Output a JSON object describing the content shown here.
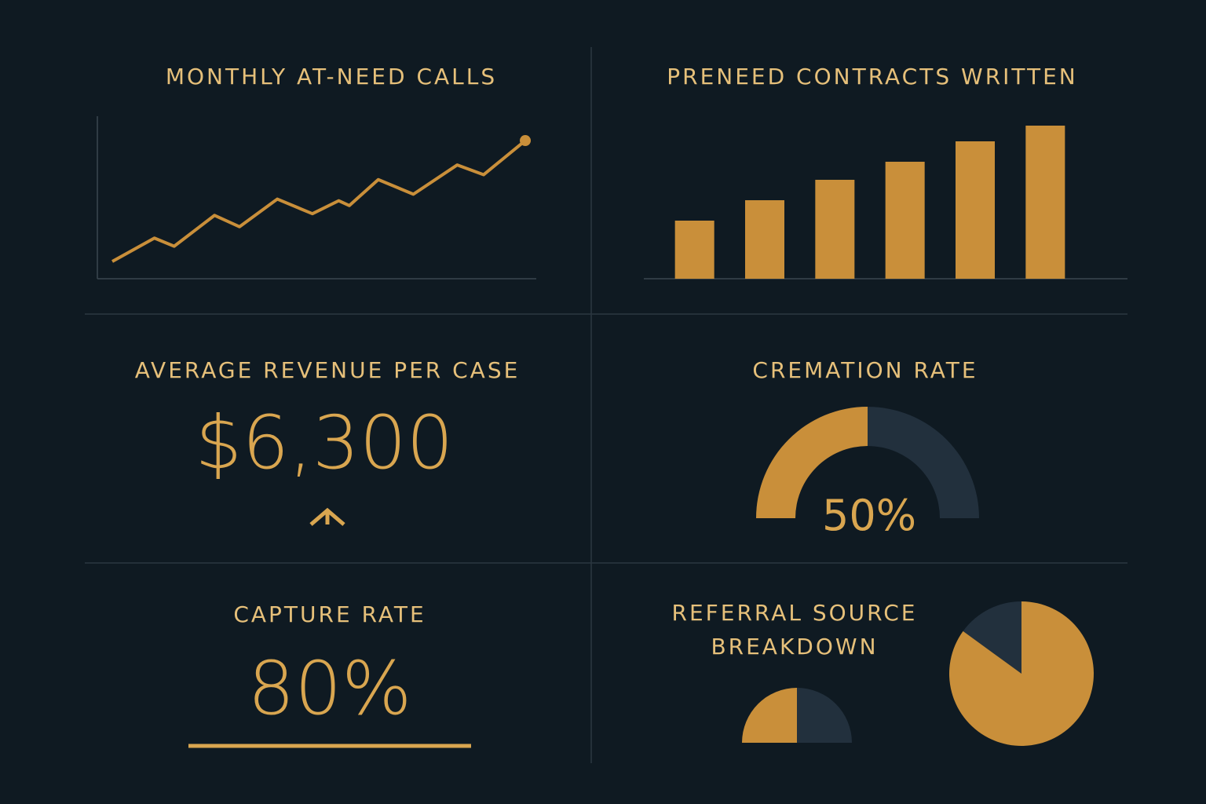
{
  "chart_data": [
    {
      "type": "line",
      "title": "MONTHLY AT-NEED CALLS",
      "color": "#c98f3a",
      "x": [
        3.4,
        13,
        17.5,
        26.7,
        32.4,
        41,
        49,
        55,
        57.4,
        64,
        72,
        82,
        88,
        97.5
      ],
      "values": [
        10.6,
        25,
        20,
        39,
        32,
        49,
        40,
        48,
        45,
        61,
        52,
        70,
        64,
        85
      ],
      "xlim": [
        0,
        100
      ],
      "ylim": [
        0,
        100
      ]
    },
    {
      "type": "bar",
      "title": "PRENEED CONTRACTS WRITTEN",
      "color": "#c98f3a",
      "values": [
        74,
        100,
        126,
        149,
        175,
        195
      ],
      "ylim": [
        0,
        200
      ]
    },
    {
      "type": "gauge",
      "title": "CREMATION RATE",
      "color": "#c98f3a",
      "track_color": "#22303d",
      "values": [
        50
      ],
      "value_labels": [
        "50%"
      ],
      "ylim": [
        0,
        100
      ]
    },
    {
      "type": "pie",
      "title": "REFERRAL SOURCE BREAKDOWN",
      "colors": [
        "#22303d",
        "#c98f3a"
      ],
      "values": [
        15,
        85
      ]
    },
    {
      "type": "half-pie",
      "colors": [
        "#c98f3a",
        "#22303d"
      ],
      "values": [
        50,
        50
      ]
    }
  ],
  "kpis": [
    {
      "title": "AVERAGE REVENUE PER CASE",
      "value": "$6,300"
    },
    {
      "title": "CAPTURE RATE",
      "value": "80%"
    }
  ]
}
